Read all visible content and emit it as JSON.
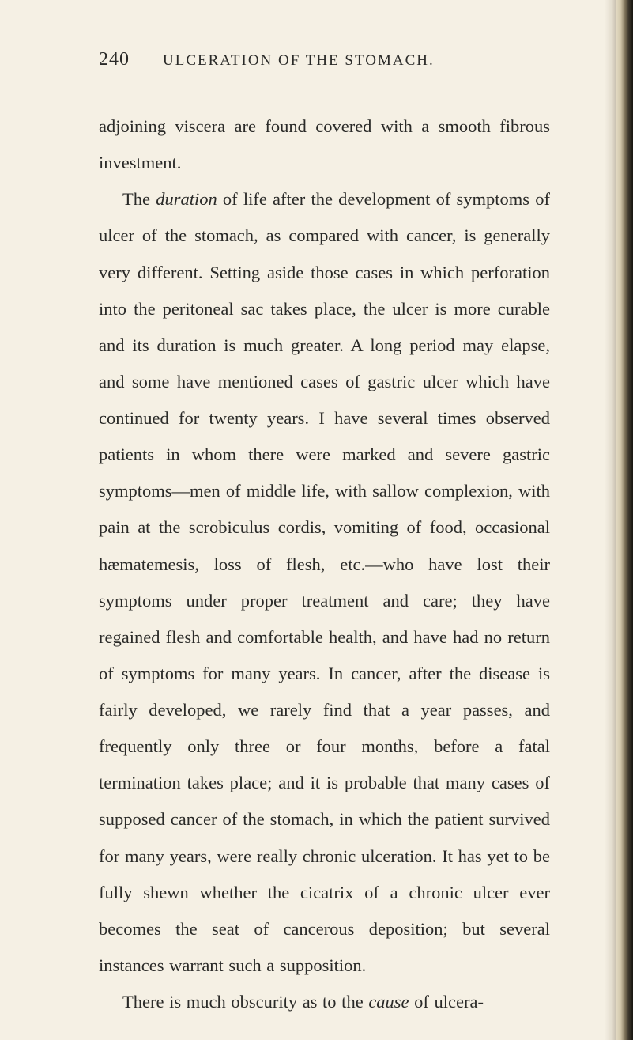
{
  "page": {
    "number": "240",
    "running_header": "ULCERATION OF THE STOMACH."
  },
  "paragraphs": {
    "p1_lead": "adjoining viscera are found covered with a smooth fibrous investment.",
    "p2_a": "The ",
    "p2_italic": "duration",
    "p2_b": " of life after the development of symptoms of ulcer of the stomach, as compared with cancer, is generally very different. Setting aside those cases in which perforation into the peritoneal sac takes place, the ulcer is more curable and its duration is much greater. A long period may elapse, and some have mentioned cases of gastric ulcer which have continued for twenty years. I have several times observed patients in whom there were marked and severe gastric symptoms—men of middle life, with sallow complexion, with pain at the scrobiculus cordis, vomiting of food, occasional hæmatemesis, loss of flesh, etc.—who have lost their symptoms under proper treatment and care; they have regained flesh and comfortable health, and have had no return of symptoms for many years. In cancer, after the disease is fairly developed, we rarely find that a year passes, and frequently only three or four months, before a fatal termination takes place; and it is probable that many cases of supposed cancer of the stomach, in which the patient survived for many years, were really chronic ulceration. It has yet to be fully shewn whether the cicatrix of a chronic ulcer ever becomes the seat of cancerous deposition; but several instances warrant such a supposition.",
    "p3_a": "There is much obscurity as to the ",
    "p3_italic": "cause",
    "p3_b": " of ulcera-"
  },
  "colors": {
    "background": "#f5f0e4",
    "text": "#2a2a28"
  }
}
